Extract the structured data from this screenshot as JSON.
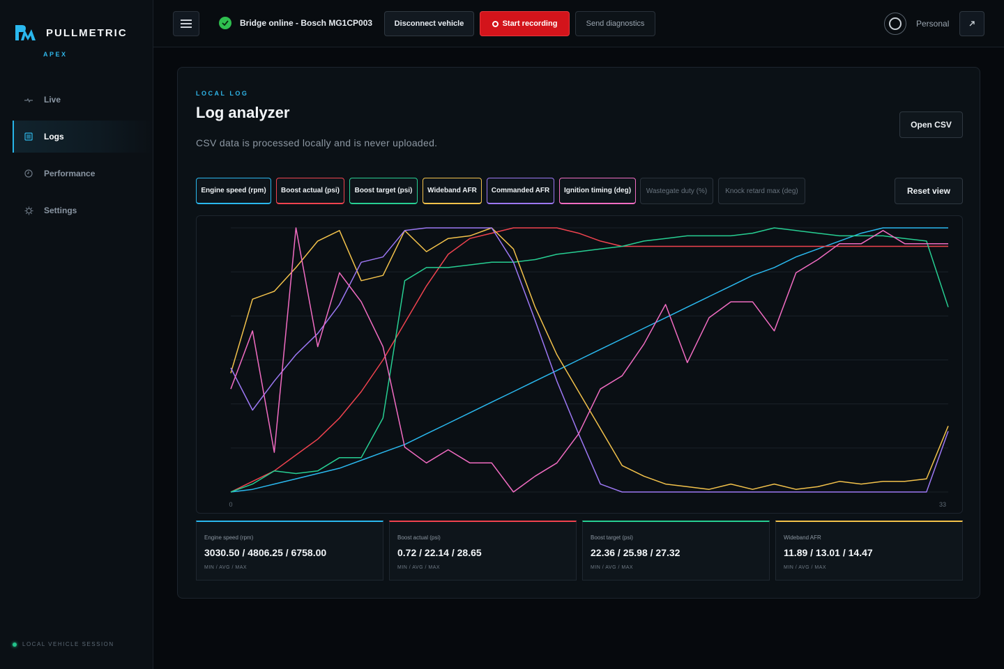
{
  "brand": {
    "name": "PULLMETRIC",
    "sub": "APEX"
  },
  "sidebar": {
    "items": [
      {
        "label": "Live",
        "icon": "pulse-icon"
      },
      {
        "label": "Logs",
        "icon": "list-icon",
        "active": true
      },
      {
        "label": "Performance",
        "icon": "gauge-icon"
      },
      {
        "label": "Settings",
        "icon": "gear-icon"
      }
    ],
    "session": "LOCAL VEHICLE SESSION"
  },
  "topbar": {
    "status": "Bridge online - Bosch MG1CP003",
    "disconnect_label": "Disconnect vehicle",
    "record_label": "Start recording",
    "diagnostics_label": "Send diagnostics",
    "profile_label": "Personal"
  },
  "page": {
    "eyebrow": "LOCAL LOG",
    "title": "Log analyzer",
    "subtitle": "CSV data is processed locally and is never uploaded.",
    "open_csv_label": "Open CSV",
    "reset_view_label": "Reset view"
  },
  "channels": [
    {
      "label": "Engine speed (rpm)",
      "color": "#2ab8ee",
      "active": true
    },
    {
      "label": "Boost actual (psi)",
      "color": "#f0434f",
      "active": true
    },
    {
      "label": "Boost target (psi)",
      "color": "#27cf93",
      "active": true
    },
    {
      "label": "Wideband AFR",
      "color": "#f3c24b",
      "active": true
    },
    {
      "label": "Commanded AFR",
      "color": "#9d78f4",
      "active": true
    },
    {
      "label": "Ignition timing (deg)",
      "color": "#f16cc2",
      "active": true
    },
    {
      "label": "Wastegate duty (%)",
      "color": "#68737e",
      "active": false
    },
    {
      "label": "Knock retard max (deg)",
      "color": "#68737e",
      "active": false
    }
  ],
  "chart_data": {
    "type": "line",
    "x_min_label": "0",
    "x_max_label": "33",
    "x": [
      0,
      1,
      2,
      3,
      4,
      5,
      6,
      7,
      8,
      9,
      10,
      11,
      12,
      13,
      14,
      15,
      16,
      17,
      18,
      19,
      20,
      21,
      22,
      23,
      24,
      25,
      26,
      27,
      28,
      29,
      30,
      31,
      32,
      33
    ],
    "ylim": [
      0,
      1
    ],
    "grid": true,
    "series": [
      {
        "name": "Engine speed (rpm)",
        "color": "#2ab8ee",
        "values": [
          0.0,
          0.01,
          0.03,
          0.05,
          0.07,
          0.09,
          0.12,
          0.15,
          0.18,
          0.22,
          0.26,
          0.3,
          0.34,
          0.38,
          0.42,
          0.46,
          0.5,
          0.54,
          0.58,
          0.62,
          0.66,
          0.7,
          0.74,
          0.78,
          0.82,
          0.85,
          0.89,
          0.92,
          0.95,
          0.98,
          1.0,
          1.0,
          1.0,
          1.0
        ]
      },
      {
        "name": "Boost actual (psi)",
        "color": "#f0434f",
        "values": [
          0.0,
          0.04,
          0.08,
          0.14,
          0.2,
          0.28,
          0.38,
          0.5,
          0.64,
          0.78,
          0.9,
          0.96,
          0.98,
          1.0,
          1.0,
          1.0,
          0.98,
          0.95,
          0.93,
          0.93,
          0.93,
          0.93,
          0.93,
          0.93,
          0.93,
          0.93,
          0.93,
          0.93,
          0.93,
          0.93,
          0.93,
          0.93,
          0.93,
          0.93
        ]
      },
      {
        "name": "Boost target (psi)",
        "color": "#27cf93",
        "values": [
          0.0,
          0.03,
          0.08,
          0.07,
          0.08,
          0.13,
          0.13,
          0.28,
          0.8,
          0.85,
          0.85,
          0.86,
          0.87,
          0.87,
          0.88,
          0.9,
          0.91,
          0.92,
          0.93,
          0.95,
          0.96,
          0.97,
          0.97,
          0.97,
          0.98,
          1.0,
          0.99,
          0.98,
          0.97,
          0.97,
          0.97,
          0.96,
          0.95,
          0.7
        ]
      },
      {
        "name": "Wideband AFR",
        "color": "#f3c24b",
        "values": [
          0.45,
          0.73,
          0.76,
          0.85,
          0.95,
          0.99,
          0.8,
          0.82,
          0.99,
          0.91,
          0.96,
          0.97,
          1.0,
          0.92,
          0.7,
          0.52,
          0.38,
          0.24,
          0.1,
          0.06,
          0.03,
          0.02,
          0.01,
          0.03,
          0.01,
          0.03,
          0.01,
          0.02,
          0.04,
          0.03,
          0.04,
          0.04,
          0.05,
          0.25
        ]
      },
      {
        "name": "Commanded AFR",
        "color": "#9d78f4",
        "values": [
          0.47,
          0.31,
          0.42,
          0.52,
          0.6,
          0.71,
          0.87,
          0.89,
          0.99,
          1.0,
          1.0,
          1.0,
          1.0,
          0.87,
          0.65,
          0.42,
          0.22,
          0.03,
          0.0,
          0.0,
          0.0,
          0.0,
          0.0,
          0.0,
          0.0,
          0.0,
          0.0,
          0.0,
          0.0,
          0.0,
          0.0,
          0.0,
          0.0,
          0.23
        ]
      },
      {
        "name": "Ignition timing (deg)",
        "color": "#f16cc2",
        "values": [
          0.39,
          0.61,
          0.15,
          1.0,
          0.55,
          0.83,
          0.72,
          0.55,
          0.17,
          0.11,
          0.16,
          0.11,
          0.11,
          0.0,
          0.06,
          0.11,
          0.22,
          0.39,
          0.44,
          0.56,
          0.71,
          0.49,
          0.66,
          0.72,
          0.72,
          0.61,
          0.83,
          0.88,
          0.94,
          0.94,
          0.99,
          0.94,
          0.94,
          0.94
        ]
      }
    ]
  },
  "stats": [
    {
      "label": "Engine speed (rpm)",
      "value": "3030.50 / 4806.25 / 6758.00",
      "sub": "MIN / AVG / MAX",
      "color": "#2ab8ee"
    },
    {
      "label": "Boost actual (psi)",
      "value": "0.72 / 22.14 / 28.65",
      "sub": "MIN / AVG / MAX",
      "color": "#f0434f"
    },
    {
      "label": "Boost target (psi)",
      "value": "22.36 / 25.98 / 27.32",
      "sub": "MIN / AVG / MAX",
      "color": "#27cf93"
    },
    {
      "label": "Wideband AFR",
      "value": "11.89 / 13.01 / 14.47",
      "sub": "MIN / AVG / MAX",
      "color": "#f3c24b"
    }
  ]
}
